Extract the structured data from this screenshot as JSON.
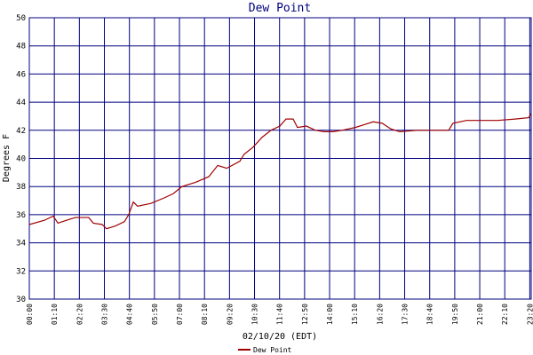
{
  "chart_data": {
    "type": "line",
    "title": "Dew Point",
    "x_label": "02/10/20 (EDT)",
    "y_label": "Degrees F",
    "x": [
      0,
      42,
      67,
      80,
      104,
      129,
      166,
      179,
      204,
      216,
      241,
      266,
      278,
      291,
      303,
      340,
      378,
      403,
      427,
      465,
      502,
      527,
      552,
      589,
      601,
      626,
      651,
      676,
      701,
      718,
      738,
      750,
      775,
      800,
      825,
      850,
      875,
      912,
      937,
      962,
      987,
      1011,
      1036,
      1086,
      1136,
      1173,
      1185,
      1223,
      1310,
      1359,
      1397,
      1404
    ],
    "series": [
      {
        "name": "Dew Point",
        "color": "#a00000",
        "values": [
          35.3,
          35.6,
          35.9,
          35.4,
          35.6,
          35.8,
          35.8,
          35.4,
          35.3,
          35.0,
          35.2,
          35.5,
          36.0,
          36.9,
          36.6,
          36.8,
          37.2,
          37.5,
          38.0,
          38.3,
          38.7,
          39.5,
          39.3,
          39.8,
          40.3,
          40.8,
          41.5,
          42.0,
          42.3,
          42.8,
          42.8,
          42.2,
          42.3,
          42.0,
          41.9,
          41.9,
          42.0,
          42.2,
          42.4,
          42.6,
          42.5,
          42.1,
          41.9,
          42.0,
          42.0,
          42.0,
          42.5,
          42.7,
          42.7,
          42.8,
          42.9,
          43.2
        ]
      }
    ],
    "xlim": [
      0,
      1404
    ],
    "xticks": [
      {
        "value": 0,
        "label": "00:00"
      },
      {
        "value": 70,
        "label": "01:10"
      },
      {
        "value": 140,
        "label": "02:20"
      },
      {
        "value": 210,
        "label": "03:30"
      },
      {
        "value": 280,
        "label": "04:40"
      },
      {
        "value": 350,
        "label": "05:50"
      },
      {
        "value": 420,
        "label": "07:00"
      },
      {
        "value": 490,
        "label": "08:10"
      },
      {
        "value": 560,
        "label": "09:20"
      },
      {
        "value": 630,
        "label": "10:30"
      },
      {
        "value": 700,
        "label": "11:40"
      },
      {
        "value": 770,
        "label": "12:50"
      },
      {
        "value": 840,
        "label": "14:00"
      },
      {
        "value": 910,
        "label": "15:10"
      },
      {
        "value": 980,
        "label": "16:20"
      },
      {
        "value": 1050,
        "label": "17:30"
      },
      {
        "value": 1120,
        "label": "18:40"
      },
      {
        "value": 1190,
        "label": "19:50"
      },
      {
        "value": 1260,
        "label": "21:00"
      },
      {
        "value": 1330,
        "label": "22:10"
      },
      {
        "value": 1400,
        "label": "23:20"
      }
    ],
    "ylim": [
      30,
      50
    ],
    "yticks": [
      30,
      32,
      34,
      36,
      38,
      40,
      42,
      44,
      46,
      48,
      50
    ],
    "grid": true,
    "grid_color": "#000080"
  }
}
